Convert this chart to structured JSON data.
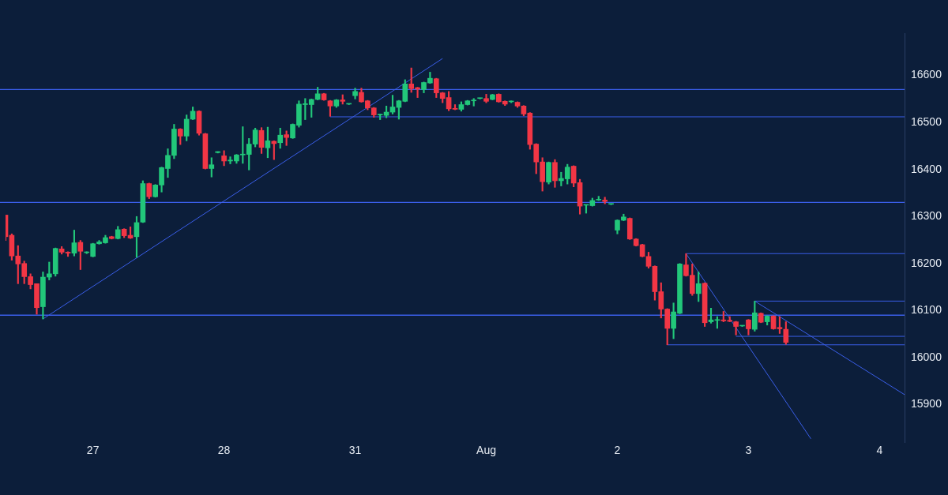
{
  "chart_data": {
    "type": "candlestick",
    "categories": [
      null,
      null,
      null,
      null,
      null,
      null,
      null,
      null,
      null,
      null,
      null,
      null,
      null,
      null,
      "27",
      null,
      null,
      null,
      null,
      null,
      null,
      null,
      null,
      null,
      null,
      null,
      null,
      null,
      null,
      null,
      null,
      null,
      null,
      null,
      null,
      "28",
      null,
      null,
      null,
      null,
      null,
      null,
      null,
      null,
      null,
      null,
      null,
      null,
      null,
      null,
      null,
      null,
      null,
      null,
      null,
      null,
      "31",
      null,
      null,
      null,
      null,
      null,
      null,
      null,
      null,
      null,
      null,
      null,
      null,
      null,
      null,
      null,
      null,
      null,
      null,
      null,
      null,
      "Aug",
      null,
      null,
      null,
      null,
      null,
      null,
      null,
      null,
      null,
      null,
      null,
      null,
      null,
      null,
      null,
      null,
      null,
      null,
      null,
      null,
      "2",
      null,
      null,
      null,
      null,
      null,
      null,
      null,
      null,
      null,
      null,
      null,
      null,
      null,
      null,
      null,
      null,
      null,
      null,
      null,
      null,
      "3",
      null,
      null,
      null,
      null,
      null,
      null,
      null,
      null,
      null,
      null,
      null,
      null,
      null,
      null,
      null,
      null,
      null,
      null,
      null,
      null,
      "4",
      null,
      null,
      null,
      null
    ],
    "ohlc": [
      [
        16303,
        16303,
        16249,
        16257
      ],
      [
        16260,
        16263,
        16207,
        16216
      ],
      [
        16216,
        16238,
        16157,
        16199
      ],
      [
        16200,
        16205,
        16157,
        16172
      ],
      [
        16172,
        16178,
        16146,
        16155
      ],
      [
        16157,
        16157,
        16092,
        16106
      ],
      [
        16108,
        16182,
        16082,
        16171
      ],
      [
        16171,
        16203,
        16165,
        16178
      ],
      [
        16178,
        16233,
        16173,
        16232
      ],
      [
        16231,
        16236,
        16220,
        16224
      ],
      [
        16224,
        16225,
        16215,
        16222
      ],
      [
        16222,
        16271,
        16216,
        16244
      ],
      [
        16245,
        16249,
        16187,
        16226
      ],
      [
        16223,
        16225,
        16221,
        16224
      ],
      [
        16215,
        16243,
        16214,
        16242
      ],
      [
        16242,
        16249,
        16241,
        16246
      ],
      [
        16244,
        16260,
        16243,
        16255
      ],
      [
        16257,
        16258,
        16252,
        16253
      ],
      [
        16253,
        16279,
        16252,
        16272
      ],
      [
        16273,
        16274,
        16255,
        16259
      ],
      [
        16260,
        16278,
        16253,
        16254
      ],
      [
        16257,
        16300,
        16213,
        16287
      ],
      [
        16288,
        16376,
        16287,
        16370
      ],
      [
        16370,
        16371,
        16338,
        16342
      ],
      [
        16342,
        16368,
        16341,
        16367
      ],
      [
        16367,
        16405,
        16352,
        16404
      ],
      [
        16402,
        16444,
        16383,
        16430
      ],
      [
        16430,
        16496,
        16423,
        16486
      ],
      [
        16486,
        16487,
        16453,
        16471
      ],
      [
        16471,
        16516,
        16461,
        16507
      ],
      [
        16507,
        16533,
        16506,
        16524
      ],
      [
        16524,
        16525,
        16473,
        16477
      ],
      [
        16476,
        16477,
        16401,
        16402
      ],
      [
        16402,
        16425,
        16384,
        16410
      ],
      [
        16436,
        16438,
        16435,
        16438
      ],
      [
        16429,
        16440,
        16408,
        16418
      ],
      [
        16418,
        16427,
        16412,
        16420
      ],
      [
        16418,
        16432,
        16413,
        16431
      ],
      [
        16431,
        16491,
        16413,
        16432
      ],
      [
        16432,
        16466,
        16399,
        16454
      ],
      [
        16454,
        16488,
        16448,
        16484
      ],
      [
        16483,
        16489,
        16434,
        16447
      ],
      [
        16446,
        16490,
        16425,
        16461
      ],
      [
        16460,
        16461,
        16421,
        16455
      ],
      [
        16457,
        16488,
        16445,
        16473
      ],
      [
        16474,
        16482,
        16451,
        16468
      ],
      [
        16467,
        16497,
        16466,
        16496
      ],
      [
        16494,
        16546,
        16490,
        16539
      ],
      [
        16538,
        16551,
        16506,
        16540
      ],
      [
        16538,
        16550,
        16511,
        16549
      ],
      [
        16549,
        16575,
        16548,
        16561
      ],
      [
        16561,
        16562,
        16547,
        16548
      ],
      [
        16546,
        16547,
        16513,
        16535
      ],
      [
        16535,
        16549,
        16532,
        16548
      ],
      [
        16548,
        16559,
        16539,
        16545
      ],
      [
        16539,
        16540,
        16538,
        16540
      ],
      [
        16557,
        16573,
        16550,
        16566
      ],
      [
        16564,
        16573,
        16543,
        16544
      ],
      [
        16546,
        16547,
        16527,
        16531
      ],
      [
        16531,
        16532,
        16511,
        16516
      ],
      [
        16516,
        16518,
        16506,
        16516
      ],
      [
        16515,
        16535,
        16510,
        16522
      ],
      [
        16522,
        16558,
        16518,
        16533
      ],
      [
        16532,
        16547,
        16507,
        16546
      ],
      [
        16545,
        16591,
        16544,
        16582
      ],
      [
        16582,
        16616,
        16564,
        16572
      ],
      [
        16574,
        16575,
        16553,
        16571
      ],
      [
        16570,
        16586,
        16563,
        16585
      ],
      [
        16584,
        16607,
        16583,
        16594
      ],
      [
        16593,
        16594,
        16553,
        16563
      ],
      [
        16563,
        16564,
        16542,
        16551
      ],
      [
        16553,
        16566,
        16525,
        16529
      ],
      [
        16530,
        16538,
        16527,
        16528
      ],
      [
        16528,
        16544,
        16524,
        16538
      ],
      [
        16538,
        16547,
        16537,
        16546
      ],
      [
        16546,
        16551,
        16535,
        16547
      ],
      [
        16551,
        16552,
        16550,
        16551
      ],
      [
        16551,
        16560,
        16542,
        16545
      ],
      [
        16549,
        16560,
        16548,
        16559
      ],
      [
        16560,
        16561,
        16543,
        16544
      ],
      [
        16545,
        16546,
        16536,
        16539
      ],
      [
        16544,
        16546,
        16542,
        16545
      ],
      [
        16543,
        16544,
        16532,
        16535
      ],
      [
        16535,
        16536,
        16514,
        16518
      ],
      [
        16520,
        16521,
        16443,
        16453
      ],
      [
        16454,
        16455,
        16391,
        16416
      ],
      [
        16416,
        16425,
        16354,
        16374
      ],
      [
        16373,
        16416,
        16369,
        16415
      ],
      [
        16415,
        16421,
        16362,
        16376
      ],
      [
        16376,
        16394,
        16365,
        16381
      ],
      [
        16380,
        16411,
        16369,
        16405
      ],
      [
        16407,
        16408,
        16363,
        16371
      ],
      [
        16372,
        16379,
        16305,
        16322
      ],
      [
        16324,
        16325,
        16307,
        16325
      ],
      [
        16323,
        16339,
        16322,
        16334
      ],
      [
        16335,
        16343,
        16334,
        16336
      ],
      [
        16335,
        16341,
        16327,
        16332
      ],
      [
        16326,
        16327,
        16325,
        16326
      ],
      [
        16271,
        16293,
        16263,
        16292
      ],
      [
        16292,
        16305,
        16291,
        16299
      ],
      [
        16296,
        16297,
        16251,
        16252
      ],
      [
        16252,
        16253,
        16237,
        16238
      ],
      [
        16240,
        16241,
        16214,
        16215
      ],
      [
        16215,
        16224,
        16190,
        16194
      ],
      [
        16194,
        16195,
        16122,
        16140
      ],
      [
        16140,
        16159,
        16084,
        16103
      ],
      [
        16103,
        16104,
        16027,
        16062
      ],
      [
        16062,
        16116,
        16040,
        16097
      ],
      [
        16094,
        16200,
        16093,
        16199
      ],
      [
        16197,
        16221,
        16173,
        16174
      ],
      [
        16175,
        16199,
        16132,
        16136
      ],
      [
        16136,
        16182,
        16119,
        16157
      ],
      [
        16158,
        16159,
        16066,
        16074
      ],
      [
        16076,
        16105,
        16073,
        16080
      ],
      [
        16079,
        16087,
        16062,
        16080
      ],
      [
        16080,
        16098,
        16076,
        16078
      ],
      [
        16079,
        16087,
        16076,
        16077
      ],
      [
        16076,
        16077,
        16048,
        16066
      ],
      [
        16067,
        16068,
        16066,
        16067
      ],
      [
        16080,
        16081,
        16048,
        16061
      ],
      [
        16060,
        16120,
        16056,
        16095
      ],
      [
        16094,
        16095,
        16074,
        16075
      ],
      [
        16076,
        16089,
        16069,
        16088
      ],
      [
        16088,
        16089,
        16060,
        16061
      ],
      [
        16064,
        16087,
        16051,
        16061
      ],
      [
        16060,
        16076,
        16028,
        16032
      ],
      null,
      null,
      null,
      null,
      null,
      null,
      null,
      null,
      null,
      null,
      null,
      null,
      null,
      null,
      null,
      null,
      null,
      null,
      null
    ],
    "colors": [
      "#f23645",
      "#f23645",
      "#f23645",
      "#f23645",
      "#f23645",
      "#f23645",
      "#22c77a",
      "#22c77a",
      "#22c77a",
      "#f23645",
      "#f23645",
      "#22c77a",
      "#f23645",
      "#22c77a",
      "#22c77a",
      "#22c77a",
      "#22c77a",
      "#f23645",
      "#22c77a",
      "#f23645",
      "#f23645",
      "#22c77a",
      "#22c77a",
      "#f23645",
      "#22c77a",
      "#22c77a",
      "#22c77a",
      "#22c77a",
      "#f23645",
      "#22c77a",
      "#22c77a",
      "#f23645",
      "#f23645",
      "#22c77a",
      "#22c77a",
      "#f23645",
      "#22c77a",
      "#22c77a",
      "#22c77a",
      "#22c77a",
      "#22c77a",
      "#f23645",
      "#22c77a",
      "#f23645",
      "#22c77a",
      "#f23645",
      "#22c77a",
      "#22c77a",
      "#22c77a",
      "#22c77a",
      "#22c77a",
      "#f23645",
      "#f23645",
      "#22c77a",
      "#f23645",
      "#22c77a",
      "#22c77a",
      "#f23645",
      "#f23645",
      "#f23645",
      "#22c77a",
      "#22c77a",
      "#22c77a",
      "#22c77a",
      "#22c77a",
      "#f23645",
      "#f23645",
      "#22c77a",
      "#22c77a",
      "#f23645",
      "#f23645",
      "#f23645",
      "#f23645",
      "#22c77a",
      "#22c77a",
      "#22c77a",
      "#22c77a",
      "#f23645",
      "#22c77a",
      "#f23645",
      "#f23645",
      "#22c77a",
      "#f23645",
      "#f23645",
      "#f23645",
      "#f23645",
      "#f23645",
      "#22c77a",
      "#f23645",
      "#22c77a",
      "#22c77a",
      "#f23645",
      "#f23645",
      "#22c77a",
      "#22c77a",
      "#22c77a",
      "#f23645",
      "#22c77a",
      "#22c77a",
      "#22c77a",
      "#f23645",
      "#f23645",
      "#f23645",
      "#f23645",
      "#f23645",
      "#f23645",
      "#f23645",
      "#22c77a",
      "#22c77a",
      "#f23645",
      "#f23645",
      "#22c77a",
      "#f23645",
      "#22c77a",
      "#22c77a",
      "#f23645",
      "#f23645",
      "#f23645",
      "#22c77a",
      "#f23645",
      "#22c77a",
      "#f23645",
      "#22c77a",
      "#f23645",
      "#f23645",
      "#f23645",
      null,
      null,
      null,
      null,
      null,
      null,
      null,
      null,
      null,
      null,
      null,
      null,
      null,
      null,
      null,
      null,
      null,
      null,
      null
    ],
    "series": [
      {
        "type": "line",
        "color": "#3a5ee8",
        "values": [
          null,
          null,
          null,
          null,
          null,
          null,
          16082,
          null,
          null,
          null,
          null,
          null,
          null,
          null,
          null,
          null,
          null,
          null,
          null,
          null,
          null,
          null,
          null,
          null,
          null,
          null,
          null,
          null,
          null,
          null,
          null,
          null,
          null,
          null,
          null,
          null,
          null,
          null,
          null,
          null,
          null,
          null,
          null,
          null,
          null,
          null,
          null,
          null,
          null,
          null,
          null,
          null,
          null,
          null,
          null,
          null,
          null,
          null,
          null,
          null,
          null,
          null,
          null,
          null,
          null,
          null,
          null,
          null,
          null,
          null,
          16636,
          null,
          null,
          null,
          null,
          null,
          null,
          null,
          null,
          null,
          null,
          null,
          null,
          null,
          null,
          null,
          null,
          null,
          null,
          null,
          null,
          null,
          null,
          null,
          null,
          null,
          null,
          null,
          null,
          null,
          null,
          null,
          null,
          null,
          null,
          null,
          null,
          null,
          null,
          null,
          null,
          null,
          null,
          null,
          null,
          null,
          null,
          null,
          null,
          null,
          null,
          null,
          null,
          null,
          null,
          null,
          null,
          null,
          null,
          null,
          null,
          null,
          null,
          null,
          null,
          null,
          null,
          null,
          null,
          null,
          null,
          null,
          null,
          null,
          null
        ]
      },
      {
        "type": "line",
        "color": "#3a5ee8",
        "values": [
          null,
          null,
          null,
          null,
          null,
          null,
          null,
          null,
          null,
          null,
          null,
          null,
          null,
          null,
          null,
          null,
          null,
          null,
          null,
          null,
          null,
          null,
          null,
          null,
          null,
          null,
          null,
          null,
          null,
          null,
          null,
          null,
          null,
          null,
          null,
          null,
          null,
          null,
          null,
          null,
          null,
          null,
          null,
          null,
          null,
          null,
          null,
          null,
          null,
          null,
          null,
          null,
          16512,
          null,
          null,
          null,
          null,
          null,
          null,
          null,
          null,
          null,
          null,
          null,
          null,
          null,
          null,
          null,
          null,
          null,
          null,
          null,
          null,
          null,
          null,
          null,
          null,
          null,
          null,
          null,
          null,
          null,
          null,
          null,
          null,
          null,
          null,
          null,
          null,
          null,
          null,
          null,
          null,
          null,
          null,
          null,
          null,
          null,
          null,
          null,
          null,
          null,
          null,
          null,
          null,
          null,
          null,
          null,
          null,
          null,
          null,
          null,
          null,
          null,
          null,
          null,
          null,
          null,
          null,
          null,
          null,
          null,
          null,
          null,
          null,
          null,
          null,
          null,
          null,
          null,
          null,
          null,
          null,
          null,
          null,
          null,
          null,
          null,
          null,
          null,
          null,
          null,
          null,
          null,
          16512
        ]
      },
      {
        "type": "line",
        "color": "#3a5ee8",
        "values": [
          null,
          null,
          null,
          null,
          null,
          null,
          null,
          null,
          null,
          null,
          null,
          null,
          null,
          null,
          null,
          null,
          null,
          null,
          null,
          null,
          null,
          null,
          null,
          null,
          null,
          null,
          null,
          null,
          null,
          null,
          null,
          null,
          null,
          null,
          null,
          null,
          null,
          null,
          null,
          null,
          null,
          null,
          null,
          null,
          null,
          null,
          null,
          null,
          null,
          null,
          null,
          null,
          null,
          null,
          null,
          null,
          null,
          null,
          null,
          null,
          null,
          null,
          null,
          null,
          null,
          null,
          null,
          null,
          null,
          null,
          null,
          null,
          null,
          null,
          null,
          null,
          null,
          null,
          null,
          null,
          null,
          null,
          null,
          null,
          null,
          null,
          null,
          null,
          null,
          null,
          null,
          null,
          null,
          null,
          null,
          null,
          null,
          null,
          null,
          null,
          null,
          null,
          null,
          null,
          null,
          null,
          null,
          null,
          null,
          16221,
          null,
          null,
          null,
          null,
          null,
          null,
          null,
          null,
          null,
          null,
          null,
          null,
          null,
          null,
          null,
          null,
          null,
          null,
          null,
          null,
          null,
          null,
          null,
          null,
          null,
          null,
          null,
          null,
          null,
          null,
          null,
          null,
          null,
          null,
          16221
        ]
      },
      {
        "type": "line",
        "color": "#3a5ee8",
        "values": [
          null,
          null,
          null,
          null,
          null,
          null,
          null,
          null,
          null,
          null,
          null,
          null,
          null,
          null,
          null,
          null,
          null,
          null,
          null,
          null,
          null,
          null,
          null,
          null,
          null,
          null,
          null,
          null,
          null,
          null,
          null,
          null,
          null,
          null,
          null,
          null,
          null,
          null,
          null,
          null,
          null,
          null,
          null,
          null,
          null,
          null,
          null,
          null,
          null,
          null,
          null,
          null,
          null,
          null,
          null,
          null,
          null,
          null,
          null,
          null,
          null,
          null,
          null,
          null,
          null,
          null,
          null,
          null,
          null,
          null,
          null,
          null,
          null,
          null,
          null,
          null,
          null,
          null,
          null,
          null,
          null,
          null,
          null,
          null,
          null,
          null,
          null,
          null,
          null,
          null,
          null,
          null,
          null,
          null,
          null,
          null,
          null,
          null,
          null,
          null,
          null,
          null,
          null,
          null,
          null,
          null,
          null,
          null,
          null,
          null,
          null,
          null,
          null,
          null,
          null,
          null,
          null,
          null,
          null,
          null,
          16120,
          null,
          null,
          null,
          null,
          null,
          null,
          null,
          null,
          null,
          null,
          null,
          null,
          null,
          null,
          null,
          null,
          null,
          null,
          null,
          null,
          null,
          null,
          null,
          16120
        ]
      },
      {
        "type": "line",
        "color": "#3a5ee8",
        "values": [
          null,
          null,
          null,
          null,
          null,
          null,
          null,
          null,
          null,
          null,
          null,
          null,
          null,
          null,
          null,
          null,
          null,
          null,
          null,
          null,
          null,
          null,
          null,
          null,
          null,
          null,
          null,
          null,
          null,
          null,
          null,
          null,
          null,
          null,
          null,
          null,
          null,
          null,
          null,
          null,
          null,
          null,
          null,
          null,
          null,
          null,
          null,
          null,
          null,
          null,
          null,
          null,
          null,
          null,
          null,
          null,
          null,
          null,
          null,
          null,
          null,
          null,
          null,
          null,
          null,
          null,
          null,
          null,
          null,
          null,
          null,
          null,
          null,
          null,
          null,
          null,
          null,
          null,
          null,
          null,
          null,
          null,
          null,
          null,
          null,
          null,
          null,
          null,
          null,
          null,
          null,
          null,
          null,
          null,
          null,
          null,
          null,
          null,
          null,
          null,
          null,
          null,
          null,
          null,
          null,
          null,
          null,
          null,
          null,
          null,
          null,
          null,
          null,
          null,
          null,
          null,
          null,
          16045,
          null,
          null,
          null,
          null,
          null,
          null,
          null,
          null,
          null,
          null,
          null,
          null,
          null,
          null,
          null,
          null,
          null,
          null,
          null,
          null,
          null,
          null,
          null,
          null,
          null,
          null,
          16045
        ]
      },
      {
        "type": "line",
        "color": "#3a5ee8",
        "values": [
          null,
          null,
          null,
          null,
          null,
          null,
          null,
          null,
          null,
          null,
          null,
          null,
          null,
          null,
          null,
          null,
          null,
          null,
          null,
          null,
          null,
          null,
          null,
          null,
          null,
          null,
          null,
          null,
          null,
          null,
          null,
          null,
          null,
          null,
          null,
          null,
          null,
          null,
          null,
          null,
          null,
          null,
          null,
          null,
          null,
          null,
          null,
          null,
          null,
          null,
          null,
          null,
          null,
          null,
          null,
          null,
          null,
          null,
          null,
          null,
          null,
          null,
          null,
          null,
          null,
          null,
          null,
          null,
          null,
          null,
          null,
          null,
          null,
          null,
          null,
          null,
          null,
          null,
          null,
          null,
          null,
          null,
          null,
          null,
          null,
          null,
          null,
          null,
          null,
          null,
          null,
          null,
          null,
          null,
          null,
          null,
          null,
          null,
          null,
          null,
          null,
          null,
          null,
          null,
          null,
          null,
          16027,
          null,
          null,
          null,
          null,
          null,
          null,
          null,
          null,
          null,
          null,
          null,
          null,
          null,
          null,
          null,
          null,
          null,
          null,
          null,
          null,
          null,
          null,
          null,
          null,
          null,
          null,
          null,
          null,
          null,
          null,
          null,
          null,
          null,
          null,
          null,
          null,
          null,
          16027
        ]
      },
      {
        "type": "line",
        "color": "#3a5ee8",
        "values": [
          null,
          null,
          null,
          null,
          null,
          null,
          null,
          null,
          null,
          null,
          null,
          null,
          null,
          null,
          null,
          null,
          null,
          null,
          null,
          null,
          null,
          null,
          null,
          null,
          null,
          null,
          null,
          null,
          null,
          null,
          null,
          null,
          null,
          null,
          null,
          null,
          null,
          null,
          null,
          null,
          null,
          null,
          null,
          null,
          null,
          null,
          null,
          null,
          null,
          null,
          null,
          null,
          null,
          null,
          null,
          null,
          null,
          null,
          null,
          null,
          null,
          null,
          null,
          null,
          null,
          null,
          null,
          null,
          null,
          null,
          null,
          null,
          null,
          null,
          null,
          null,
          null,
          null,
          null,
          null,
          null,
          null,
          null,
          null,
          null,
          null,
          null,
          null,
          null,
          null,
          null,
          null,
          null,
          null,
          null,
          null,
          null,
          null,
          null,
          null,
          null,
          null,
          null,
          null,
          null,
          null,
          null,
          null,
          null,
          16221,
          null,
          null,
          null,
          null,
          null,
          null,
          null,
          null,
          null,
          null,
          null,
          null,
          null,
          null,
          null,
          null,
          null,
          null,
          null,
          15827,
          null,
          null,
          null,
          null,
          null,
          null,
          null,
          null,
          null,
          null,
          null,
          null,
          null,
          null,
          null
        ]
      },
      {
        "type": "line",
        "color": "#3a5ee8",
        "values": [
          null,
          null,
          null,
          null,
          null,
          null,
          null,
          null,
          null,
          null,
          null,
          null,
          null,
          null,
          null,
          null,
          null,
          null,
          null,
          null,
          null,
          null,
          null,
          null,
          null,
          null,
          null,
          null,
          null,
          null,
          null,
          null,
          null,
          null,
          null,
          null,
          null,
          null,
          null,
          null,
          null,
          null,
          null,
          null,
          null,
          null,
          null,
          null,
          null,
          null,
          null,
          null,
          null,
          null,
          null,
          null,
          null,
          null,
          null,
          null,
          null,
          null,
          null,
          null,
          null,
          null,
          null,
          null,
          null,
          null,
          null,
          null,
          null,
          null,
          null,
          null,
          null,
          null,
          null,
          null,
          null,
          null,
          null,
          null,
          null,
          null,
          null,
          null,
          null,
          null,
          null,
          null,
          null,
          null,
          null,
          null,
          null,
          null,
          null,
          null,
          null,
          null,
          null,
          null,
          null,
          null,
          null,
          null,
          null,
          null,
          null,
          null,
          null,
          null,
          null,
          null,
          null,
          null,
          null,
          null,
          16120,
          null,
          null,
          null,
          null,
          null,
          null,
          null,
          null,
          null,
          null,
          null,
          null,
          null,
          null,
          null,
          null,
          null,
          null,
          null,
          null,
          null,
          null,
          null,
          15921
        ]
      }
    ],
    "ref_lines": [
      {
        "axis": "y",
        "value": 16570,
        "color": "#3a5ee8"
      },
      {
        "axis": "y",
        "value": 16330,
        "color": "#3a5ee8"
      },
      {
        "axis": "y",
        "value": 16090,
        "color": "#3a5ee8"
      }
    ],
    "marker": "none",
    "ylim": [
      15820,
      16690
    ],
    "yticks": [
      15900,
      16000,
      16100,
      16200,
      16300,
      16400,
      16500,
      16600
    ]
  }
}
